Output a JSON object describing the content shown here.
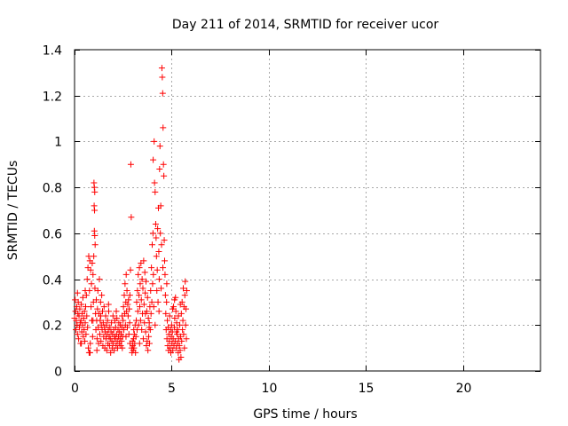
{
  "chart_data": {
    "type": "scatter",
    "title": "Day 211 of 2014, SRMTID for receiver ucor",
    "xlabel": "GPS time / hours",
    "ylabel": "SRMTID / TECUs",
    "xlim": [
      0,
      24
    ],
    "ylim": [
      0,
      1.4
    ],
    "xticks": [
      0,
      5,
      10,
      15,
      20
    ],
    "yticks": [
      0,
      0.2,
      0.4,
      0.6,
      0.8,
      1,
      1.2,
      1.4
    ],
    "ytick_labels": [
      "0",
      "0.2",
      "0.4",
      "0.6",
      "0.8",
      "1",
      "1.2",
      "1.4"
    ],
    "grid": true,
    "marker": "+",
    "color": "#ff0000",
    "series": [
      {
        "name": "SRMTID",
        "points": [
          [
            0.0,
            0.23
          ],
          [
            0.03,
            0.31
          ],
          [
            0.05,
            0.26
          ],
          [
            0.07,
            0.18
          ],
          [
            0.09,
            0.22
          ],
          [
            0.11,
            0.28
          ],
          [
            0.13,
            0.2
          ],
          [
            0.15,
            0.16
          ],
          [
            0.17,
            0.25
          ],
          [
            0.19,
            0.3
          ],
          [
            0.21,
            0.14
          ],
          [
            0.23,
            0.24
          ],
          [
            0.25,
            0.19
          ],
          [
            0.27,
            0.27
          ],
          [
            0.29,
            0.21
          ],
          [
            0.31,
            0.12
          ],
          [
            0.33,
            0.22
          ],
          [
            0.35,
            0.29
          ],
          [
            0.37,
            0.17
          ],
          [
            0.39,
            0.25
          ],
          [
            0.41,
            0.2
          ],
          [
            0.43,
            0.32
          ],
          [
            0.45,
            0.15
          ],
          [
            0.47,
            0.23
          ],
          [
            0.49,
            0.18
          ],
          [
            0.51,
            0.26
          ],
          [
            0.53,
            0.13
          ],
          [
            0.55,
            0.21
          ],
          [
            0.57,
            0.28
          ],
          [
            0.59,
            0.16
          ],
          [
            0.61,
            0.33
          ],
          [
            0.63,
            0.24
          ],
          [
            0.65,
            0.4
          ],
          [
            0.67,
            0.19
          ],
          [
            0.69,
            0.45
          ],
          [
            0.71,
            0.1
          ],
          [
            0.73,
            0.5
          ],
          [
            0.75,
            0.08
          ],
          [
            0.77,
            0.35
          ],
          [
            0.79,
            0.48
          ],
          [
            0.81,
            0.12
          ],
          [
            0.83,
            0.44
          ],
          [
            0.85,
            0.28
          ],
          [
            0.87,
            0.38
          ],
          [
            0.89,
            0.22
          ],
          [
            0.91,
            0.47
          ],
          [
            0.93,
            0.15
          ],
          [
            0.95,
            0.42
          ],
          [
            0.97,
            0.3
          ],
          [
            0.99,
            0.5
          ],
          [
            1.0,
            0.82
          ],
          [
            1.02,
            0.8
          ],
          [
            1.04,
            0.78
          ],
          [
            1.01,
            0.72
          ],
          [
            1.03,
            0.7
          ],
          [
            1.02,
            0.61
          ],
          [
            1.04,
            0.59
          ],
          [
            1.06,
            0.55
          ],
          [
            1.05,
            0.36
          ],
          [
            1.08,
            0.25
          ],
          [
            1.1,
            0.18
          ],
          [
            1.12,
            0.31
          ],
          [
            1.14,
            0.22
          ],
          [
            1.16,
            0.14
          ],
          [
            1.18,
            0.27
          ],
          [
            1.2,
            0.35
          ],
          [
            1.22,
            0.19
          ],
          [
            1.24,
            0.12
          ],
          [
            1.26,
            0.25
          ],
          [
            1.28,
            0.4
          ],
          [
            1.3,
            0.16
          ],
          [
            1.32,
            0.22
          ],
          [
            1.34,
            0.3
          ],
          [
            1.36,
            0.13
          ],
          [
            1.38,
            0.2
          ],
          [
            1.4,
            0.33
          ],
          [
            1.42,
            0.18
          ],
          [
            1.44,
            0.26
          ],
          [
            1.46,
            0.11
          ],
          [
            1.48,
            0.21
          ],
          [
            1.5,
            0.15
          ],
          [
            1.52,
            0.28
          ],
          [
            1.54,
            0.19
          ],
          [
            1.56,
            0.1
          ],
          [
            1.58,
            0.17
          ],
          [
            1.6,
            0.24
          ],
          [
            1.62,
            0.14
          ],
          [
            1.64,
            0.2
          ],
          [
            1.66,
            0.09
          ],
          [
            1.68,
            0.16
          ],
          [
            1.7,
            0.22
          ],
          [
            1.72,
            0.12
          ],
          [
            1.74,
            0.18
          ],
          [
            1.76,
            0.26
          ],
          [
            1.78,
            0.15
          ],
          [
            1.8,
            0.11
          ],
          [
            1.82,
            0.19
          ],
          [
            1.84,
            0.14
          ],
          [
            1.86,
            0.08
          ],
          [
            1.88,
            0.17
          ],
          [
            1.9,
            0.21
          ],
          [
            1.92,
            0.13
          ],
          [
            1.94,
            0.1
          ],
          [
            1.96,
            0.16
          ],
          [
            1.98,
            0.24
          ],
          [
            2.0,
            0.12
          ],
          [
            2.02,
            0.18
          ],
          [
            2.04,
            0.09
          ],
          [
            2.06,
            0.15
          ],
          [
            2.08,
            0.22
          ],
          [
            2.1,
            0.14
          ],
          [
            2.12,
            0.19
          ],
          [
            2.14,
            0.11
          ],
          [
            2.16,
            0.16
          ],
          [
            2.18,
            0.23
          ],
          [
            2.2,
            0.13
          ],
          [
            2.22,
            0.1
          ],
          [
            2.24,
            0.18
          ],
          [
            2.26,
            0.15
          ],
          [
            2.28,
            0.21
          ],
          [
            2.3,
            0.12
          ],
          [
            2.32,
            0.17
          ],
          [
            2.34,
            0.14
          ],
          [
            2.36,
            0.2
          ],
          [
            2.38,
            0.11
          ],
          [
            2.4,
            0.16
          ],
          [
            2.42,
            0.13
          ],
          [
            2.44,
            0.19
          ],
          [
            2.46,
            0.1
          ],
          [
            2.48,
            0.15
          ],
          [
            2.5,
            0.22
          ],
          [
            2.52,
            0.28
          ],
          [
            2.54,
            0.18
          ],
          [
            2.56,
            0.33
          ],
          [
            2.58,
            0.25
          ],
          [
            2.6,
            0.38
          ],
          [
            2.62,
            0.2
          ],
          [
            2.64,
            0.3
          ],
          [
            2.66,
            0.42
          ],
          [
            2.68,
            0.26
          ],
          [
            2.7,
            0.35
          ],
          [
            2.72,
            0.19
          ],
          [
            2.74,
            0.29
          ],
          [
            2.76,
            0.24
          ],
          [
            2.78,
            0.31
          ],
          [
            2.8,
            0.16
          ],
          [
            2.82,
            0.27
          ],
          [
            2.84,
            0.21
          ],
          [
            2.86,
            0.12
          ],
          [
            2.88,
            0.44
          ],
          [
            2.9,
            0.9
          ],
          [
            2.92,
            0.67
          ],
          [
            2.94,
            0.1
          ],
          [
            2.96,
            0.08
          ],
          [
            2.98,
            0.13
          ],
          [
            3.0,
            0.11
          ],
          [
            3.02,
            0.09
          ],
          [
            3.04,
            0.14
          ],
          [
            3.06,
            0.1
          ],
          [
            3.08,
            0.16
          ],
          [
            3.1,
            0.12
          ],
          [
            3.12,
            0.2
          ],
          [
            3.14,
            0.08
          ],
          [
            3.16,
            0.15
          ],
          [
            3.18,
            0.22
          ],
          [
            3.2,
            0.3
          ],
          [
            3.22,
            0.18
          ],
          [
            3.24,
            0.35
          ],
          [
            3.26,
            0.26
          ],
          [
            3.28,
            0.42
          ],
          [
            3.3,
            0.2
          ],
          [
            3.32,
            0.33
          ],
          [
            3.34,
            0.45
          ],
          [
            3.36,
            0.28
          ],
          [
            3.38,
            0.38
          ],
          [
            3.4,
            0.22
          ],
          [
            3.42,
            0.47
          ],
          [
            3.44,
            0.31
          ],
          [
            3.46,
            0.18
          ],
          [
            3.48,
            0.4
          ],
          [
            3.5,
            0.25
          ],
          [
            3.52,
            0.36
          ],
          [
            3.54,
            0.14
          ],
          [
            3.56,
            0.48
          ],
          [
            3.58,
            0.29
          ],
          [
            3.6,
            0.21
          ],
          [
            3.62,
            0.43
          ],
          [
            3.64,
            0.34
          ],
          [
            3.66,
            0.17
          ],
          [
            3.68,
            0.39
          ],
          [
            3.7,
            0.11
          ],
          [
            3.72,
            0.26
          ],
          [
            3.74,
            0.13
          ],
          [
            3.76,
            0.32
          ],
          [
            3.78,
            0.09
          ],
          [
            3.8,
            0.23
          ],
          [
            3.82,
            0.15
          ],
          [
            3.84,
            0.19
          ],
          [
            3.86,
            0.12
          ],
          [
            3.88,
            0.28
          ],
          [
            3.9,
            0.18
          ],
          [
            3.92,
            0.35
          ],
          [
            3.94,
            0.25
          ],
          [
            3.96,
            0.45
          ],
          [
            3.98,
            0.3
          ],
          [
            4.0,
            0.55
          ],
          [
            4.02,
            0.38
          ],
          [
            4.04,
            0.6
          ],
          [
            4.06,
            0.42
          ],
          [
            4.08,
            0.28
          ],
          [
            4.05,
            0.92
          ],
          [
            4.1,
            1.0
          ],
          [
            4.12,
            0.82
          ],
          [
            4.15,
            0.78
          ],
          [
            4.18,
            0.64
          ],
          [
            4.2,
            0.58
          ],
          [
            4.22,
            0.5
          ],
          [
            4.24,
            0.35
          ],
          [
            4.26,
            0.44
          ],
          [
            4.28,
            0.62
          ],
          [
            4.3,
            0.3
          ],
          [
            4.32,
            0.71
          ],
          [
            4.34,
            0.52
          ],
          [
            4.36,
            0.4
          ],
          [
            4.38,
            0.88
          ],
          [
            4.4,
            0.98
          ],
          [
            4.42,
            0.6
          ],
          [
            4.44,
            0.72
          ],
          [
            4.46,
            0.36
          ],
          [
            4.48,
            0.55
          ],
          [
            4.5,
            1.32
          ],
          [
            4.52,
            1.28
          ],
          [
            4.54,
            1.21
          ],
          [
            4.56,
            1.06
          ],
          [
            4.58,
            0.9
          ],
          [
            4.6,
            0.85
          ],
          [
            4.62,
            0.57
          ],
          [
            4.64,
            0.48
          ],
          [
            4.66,
            0.42
          ],
          [
            4.68,
            0.33
          ],
          [
            4.7,
            0.25
          ],
          [
            4.72,
            0.18
          ],
          [
            4.74,
            0.3
          ],
          [
            4.76,
            0.14
          ],
          [
            4.78,
            0.22
          ],
          [
            4.8,
            0.11
          ],
          [
            4.82,
            0.19
          ],
          [
            4.84,
            0.09
          ],
          [
            4.86,
            0.16
          ],
          [
            4.88,
            0.13
          ],
          [
            4.9,
            0.24
          ],
          [
            4.92,
            0.1
          ],
          [
            4.94,
            0.18
          ],
          [
            4.96,
            0.08
          ],
          [
            4.98,
            0.15
          ],
          [
            5.0,
            0.2
          ],
          [
            5.02,
            0.12
          ],
          [
            5.04,
            0.17
          ],
          [
            5.06,
            0.09
          ],
          [
            5.08,
            0.14
          ],
          [
            5.1,
            0.28
          ],
          [
            5.12,
            0.11
          ],
          [
            5.14,
            0.19
          ],
          [
            5.16,
            0.23
          ],
          [
            5.18,
            0.13
          ],
          [
            5.2,
            0.32
          ],
          [
            5.22,
            0.26
          ],
          [
            5.24,
            0.1
          ],
          [
            5.26,
            0.21
          ],
          [
            5.28,
            0.16
          ],
          [
            5.3,
            0.12
          ],
          [
            5.32,
            0.18
          ],
          [
            5.34,
            0.08
          ],
          [
            5.36,
            0.14
          ],
          [
            5.38,
            0.05
          ],
          [
            5.4,
            0.11
          ],
          [
            5.42,
            0.2
          ],
          [
            5.44,
            0.09
          ],
          [
            5.46,
            0.15
          ],
          [
            5.48,
            0.06
          ],
          [
            5.5,
            0.25
          ],
          [
            5.52,
            0.13
          ],
          [
            5.54,
            0.3
          ],
          [
            5.56,
            0.18
          ],
          [
            5.58,
            0.22
          ],
          [
            5.6,
            0.36
          ],
          [
            5.62,
            0.16
          ],
          [
            5.64,
            0.28
          ],
          [
            5.66,
            0.1
          ],
          [
            5.68,
            0.33
          ],
          [
            5.7,
            0.39
          ],
          [
            5.72,
            0.2
          ],
          [
            5.74,
            0.27
          ],
          [
            5.76,
            0.14
          ],
          [
            5.78,
            0.35
          ],
          [
            5.45,
            0.29
          ],
          [
            5.35,
            0.24
          ],
          [
            5.25,
            0.17
          ],
          [
            5.15,
            0.31
          ],
          [
            5.05,
            0.27
          ],
          [
            0.15,
            0.34
          ],
          [
            0.35,
            0.12
          ],
          [
            0.55,
            0.35
          ],
          [
            0.8,
            0.08
          ],
          [
            0.95,
            0.22
          ],
          [
            1.15,
            0.09
          ],
          [
            1.35,
            0.24
          ],
          [
            1.75,
            0.29
          ],
          [
            2.15,
            0.26
          ],
          [
            2.45,
            0.24
          ],
          [
            2.65,
            0.15
          ],
          [
            2.85,
            0.33
          ],
          [
            3.05,
            0.18
          ],
          [
            3.35,
            0.12
          ],
          [
            3.65,
            0.25
          ],
          [
            3.85,
            0.21
          ],
          [
            4.15,
            0.2
          ],
          [
            4.35,
            0.26
          ],
          [
            4.55,
            0.45
          ],
          [
            4.75,
            0.38
          ]
        ]
      }
    ]
  }
}
